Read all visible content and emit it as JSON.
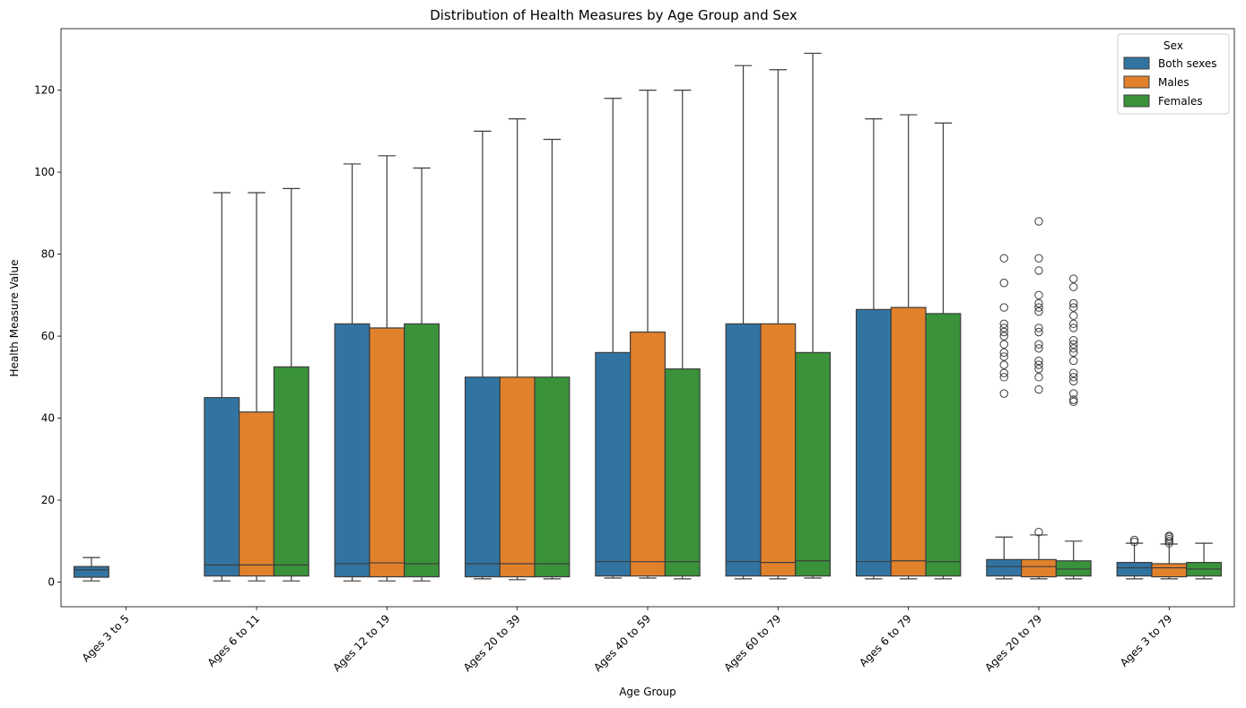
{
  "chart_data": {
    "type": "boxplot",
    "title": "Distribution of Health Measures by Age Group and Sex",
    "xlabel": "Age Group",
    "ylabel": "Health Measure Value",
    "ylim": [
      -6,
      135
    ],
    "yticks": [
      0,
      20,
      40,
      60,
      80,
      100,
      120
    ],
    "grid": false,
    "legend": {
      "title": "Sex",
      "placement": "top-right"
    },
    "categories": [
      "Ages 3 to 5",
      "Ages 6 to 11",
      "Ages 12 to 19",
      "Ages 20 to 39",
      "Ages 40 to 59",
      "Ages 60 to 79",
      "Ages 6 to 79",
      "Ages 20 to 79",
      "Ages 3 to 79"
    ],
    "series": [
      {
        "name": "Both sexes",
        "color": "#3274a1",
        "boxes": [
          {
            "whislo": 0.3,
            "q1": 1.2,
            "med": 3.0,
            "q3": 3.8,
            "whishi": 6.0,
            "fliers": []
          },
          {
            "whislo": 0.3,
            "q1": 1.5,
            "med": 4.2,
            "q3": 45.0,
            "whishi": 95.0,
            "fliers": []
          },
          {
            "whislo": 0.3,
            "q1": 1.3,
            "med": 4.5,
            "q3": 63.0,
            "whishi": 102.0,
            "fliers": []
          },
          {
            "whislo": 0.8,
            "q1": 1.3,
            "med": 4.5,
            "q3": 50.0,
            "whishi": 110.0,
            "fliers": []
          },
          {
            "whislo": 1.0,
            "q1": 1.5,
            "med": 5.0,
            "q3": 56.0,
            "whishi": 118.0,
            "fliers": []
          },
          {
            "whislo": 0.8,
            "q1": 1.5,
            "med": 5.0,
            "q3": 63.0,
            "whishi": 126.0,
            "fliers": []
          },
          {
            "whislo": 0.8,
            "q1": 1.5,
            "med": 5.0,
            "q3": 66.5,
            "whishi": 113.0,
            "fliers": []
          },
          {
            "whislo": 0.8,
            "q1": 1.5,
            "med": 3.8,
            "q3": 5.5,
            "whishi": 11.0,
            "fliers": [
              46,
              50,
              51,
              53,
              55,
              56,
              58,
              60,
              61,
              62,
              63,
              67,
              73,
              79
            ]
          },
          {
            "whislo": 0.8,
            "q1": 1.5,
            "med": 3.5,
            "q3": 4.8,
            "whishi": 9.5,
            "fliers": [
              9.8,
              10.3
            ]
          }
        ]
      },
      {
        "name": "Males",
        "color": "#e1812c",
        "boxes": [
          null,
          {
            "whislo": 0.3,
            "q1": 1.5,
            "med": 4.2,
            "q3": 41.5,
            "whishi": 95.0,
            "fliers": []
          },
          {
            "whislo": 0.3,
            "q1": 1.3,
            "med": 4.7,
            "q3": 62.0,
            "whishi": 104.0,
            "fliers": []
          },
          {
            "whislo": 0.6,
            "q1": 1.3,
            "med": 4.5,
            "q3": 50.0,
            "whishi": 113.0,
            "fliers": []
          },
          {
            "whislo": 1.0,
            "q1": 1.5,
            "med": 5.0,
            "q3": 61.0,
            "whishi": 120.0,
            "fliers": []
          },
          {
            "whislo": 0.8,
            "q1": 1.5,
            "med": 4.8,
            "q3": 63.0,
            "whishi": 125.0,
            "fliers": []
          },
          {
            "whislo": 0.8,
            "q1": 1.5,
            "med": 5.2,
            "q3": 67.0,
            "whishi": 114.0,
            "fliers": []
          },
          {
            "whislo": 0.8,
            "q1": 1.3,
            "med": 3.8,
            "q3": 5.5,
            "whishi": 11.5,
            "fliers": [
              12.2,
              47,
              50,
              52,
              53,
              54,
              57,
              58,
              61,
              62,
              66,
              67,
              68,
              70,
              76,
              79,
              88
            ]
          },
          {
            "whislo": 0.8,
            "q1": 1.3,
            "med": 3.5,
            "q3": 4.5,
            "whishi": 9.3,
            "fliers": [
              9.5,
              10.0,
              10.5,
              11.0,
              11.3
            ]
          }
        ]
      },
      {
        "name": "Females",
        "color": "#3a923a",
        "boxes": [
          null,
          {
            "whislo": 0.3,
            "q1": 1.5,
            "med": 4.2,
            "q3": 52.5,
            "whishi": 96.0,
            "fliers": []
          },
          {
            "whislo": 0.3,
            "q1": 1.3,
            "med": 4.5,
            "q3": 63.0,
            "whishi": 101.0,
            "fliers": []
          },
          {
            "whislo": 0.8,
            "q1": 1.3,
            "med": 4.5,
            "q3": 50.0,
            "whishi": 108.0,
            "fliers": []
          },
          {
            "whislo": 0.8,
            "q1": 1.5,
            "med": 5.0,
            "q3": 52.0,
            "whishi": 120.0,
            "fliers": []
          },
          {
            "whislo": 1.0,
            "q1": 1.5,
            "med": 5.2,
            "q3": 56.0,
            "whishi": 129.0,
            "fliers": []
          },
          {
            "whislo": 0.8,
            "q1": 1.5,
            "med": 5.0,
            "q3": 65.5,
            "whishi": 112.0,
            "fliers": []
          },
          {
            "whislo": 0.8,
            "q1": 1.5,
            "med": 3.2,
            "q3": 5.2,
            "whishi": 10.0,
            "fliers": [
              44,
              44.5,
              46,
              49,
              50,
              51,
              54,
              56,
              57,
              58,
              59,
              62,
              63,
              65,
              67,
              68,
              72,
              74
            ]
          },
          {
            "whislo": 0.8,
            "q1": 1.5,
            "med": 3.2,
            "q3": 4.8,
            "whishi": 9.5,
            "fliers": []
          }
        ]
      }
    ]
  }
}
